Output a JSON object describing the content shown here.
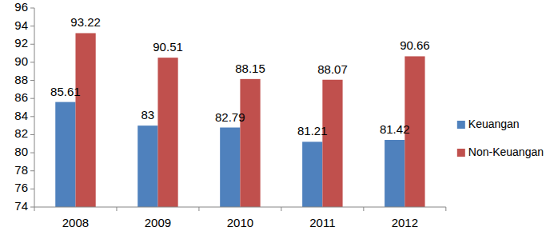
{
  "chart_data": {
    "type": "bar",
    "categories": [
      "2008",
      "2009",
      "2010",
      "2011",
      "2012"
    ],
    "series": [
      {
        "name": "Keuangan",
        "color": "#4f81bd",
        "values": [
          85.61,
          83,
          82.79,
          81.21,
          81.42
        ]
      },
      {
        "name": "Non-Keuangan",
        "color": "#c0504d",
        "values": [
          93.22,
          90.51,
          88.15,
          88.07,
          90.66
        ]
      }
    ],
    "ylim": [
      74,
      96
    ],
    "yticks": [
      74,
      76,
      78,
      80,
      82,
      84,
      86,
      88,
      90,
      92,
      94,
      96
    ],
    "grid": false,
    "legend": "right",
    "data_labels": true
  }
}
